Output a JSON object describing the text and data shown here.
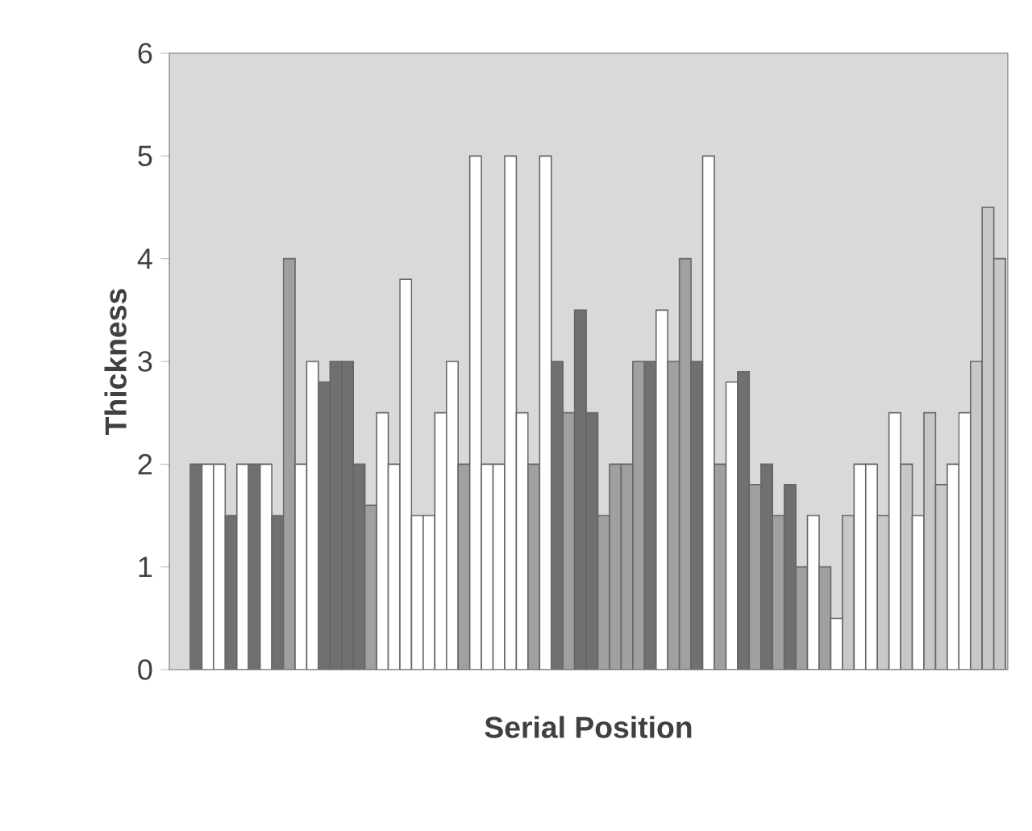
{
  "chart_data": {
    "type": "bar",
    "xlabel": "Serial Position",
    "ylabel": "Thickness",
    "categories": [
      null,
      null,
      null,
      null,
      null,
      null,
      null,
      null,
      null,
      null,
      null,
      null,
      null,
      null,
      null,
      null,
      null,
      null,
      null,
      null,
      null,
      null,
      null,
      null,
      null,
      null,
      null,
      null,
      null,
      null,
      null,
      null,
      null,
      null,
      null,
      null,
      null,
      null,
      null,
      null,
      null,
      null,
      null,
      null,
      null,
      null,
      null,
      null,
      null,
      null,
      null,
      null,
      null,
      null,
      null,
      null,
      null,
      null,
      null,
      null,
      null,
      null,
      null,
      null,
      null,
      null,
      null,
      null,
      null,
      null
    ],
    "values": [
      2,
      2,
      2,
      1.5,
      2,
      2,
      2,
      1.5,
      4,
      2,
      3,
      2.8,
      3,
      3,
      2,
      1.6,
      2.5,
      2,
      3.8,
      1.5,
      1.5,
      2.5,
      3,
      2,
      5,
      2,
      2,
      5,
      2.5,
      2,
      5,
      3,
      2.5,
      3.5,
      2.5,
      1.5,
      2,
      2,
      3,
      3,
      3.5,
      3,
      4,
      3,
      5,
      2,
      2.8,
      2.9,
      1.8,
      2,
      1.5,
      1.8,
      1,
      1.5,
      1,
      0.5,
      1.5,
      2,
      2,
      1.5,
      2.5,
      2,
      1.5,
      2.5,
      1.8,
      2,
      2.5,
      3,
      4.5,
      4
    ],
    "colors": [
      "#707070",
      "#ffffff",
      "#ffffff",
      "#707070",
      "#ffffff",
      "#707070",
      "#ffffff",
      "#707070",
      "#a0a0a0",
      "#ffffff",
      "#ffffff",
      "#707070",
      "#707070",
      "#707070",
      "#707070",
      "#a0a0a0",
      "#ffffff",
      "#ffffff",
      "#ffffff",
      "#ffffff",
      "#ffffff",
      "#ffffff",
      "#ffffff",
      "#a0a0a0",
      "#ffffff",
      "#ffffff",
      "#ffffff",
      "#ffffff",
      "#ffffff",
      "#a0a0a0",
      "#ffffff",
      "#707070",
      "#a0a0a0",
      "#707070",
      "#707070",
      "#a0a0a0",
      "#a0a0a0",
      "#a0a0a0",
      "#a0a0a0",
      "#707070",
      "#ffffff",
      "#a0a0a0",
      "#a0a0a0",
      "#707070",
      "#ffffff",
      "#a0a0a0",
      "#ffffff",
      "#707070",
      "#a0a0a0",
      "#707070",
      "#a0a0a0",
      "#707070",
      "#a0a0a0",
      "#ffffff",
      "#a0a0a0",
      "#ffffff",
      "#c8c8c8",
      "#ffffff",
      "#ffffff",
      "#c8c8c8",
      "#ffffff",
      "#c8c8c8",
      "#ffffff",
      "#c8c8c8",
      "#c8c8c8",
      "#ffffff",
      "#ffffff",
      "#c8c8c8",
      "#c8c8c8",
      "#c8c8c8"
    ],
    "ylim": [
      0,
      6
    ],
    "yticks": [
      0,
      1,
      2,
      3,
      4,
      5,
      6
    ]
  }
}
